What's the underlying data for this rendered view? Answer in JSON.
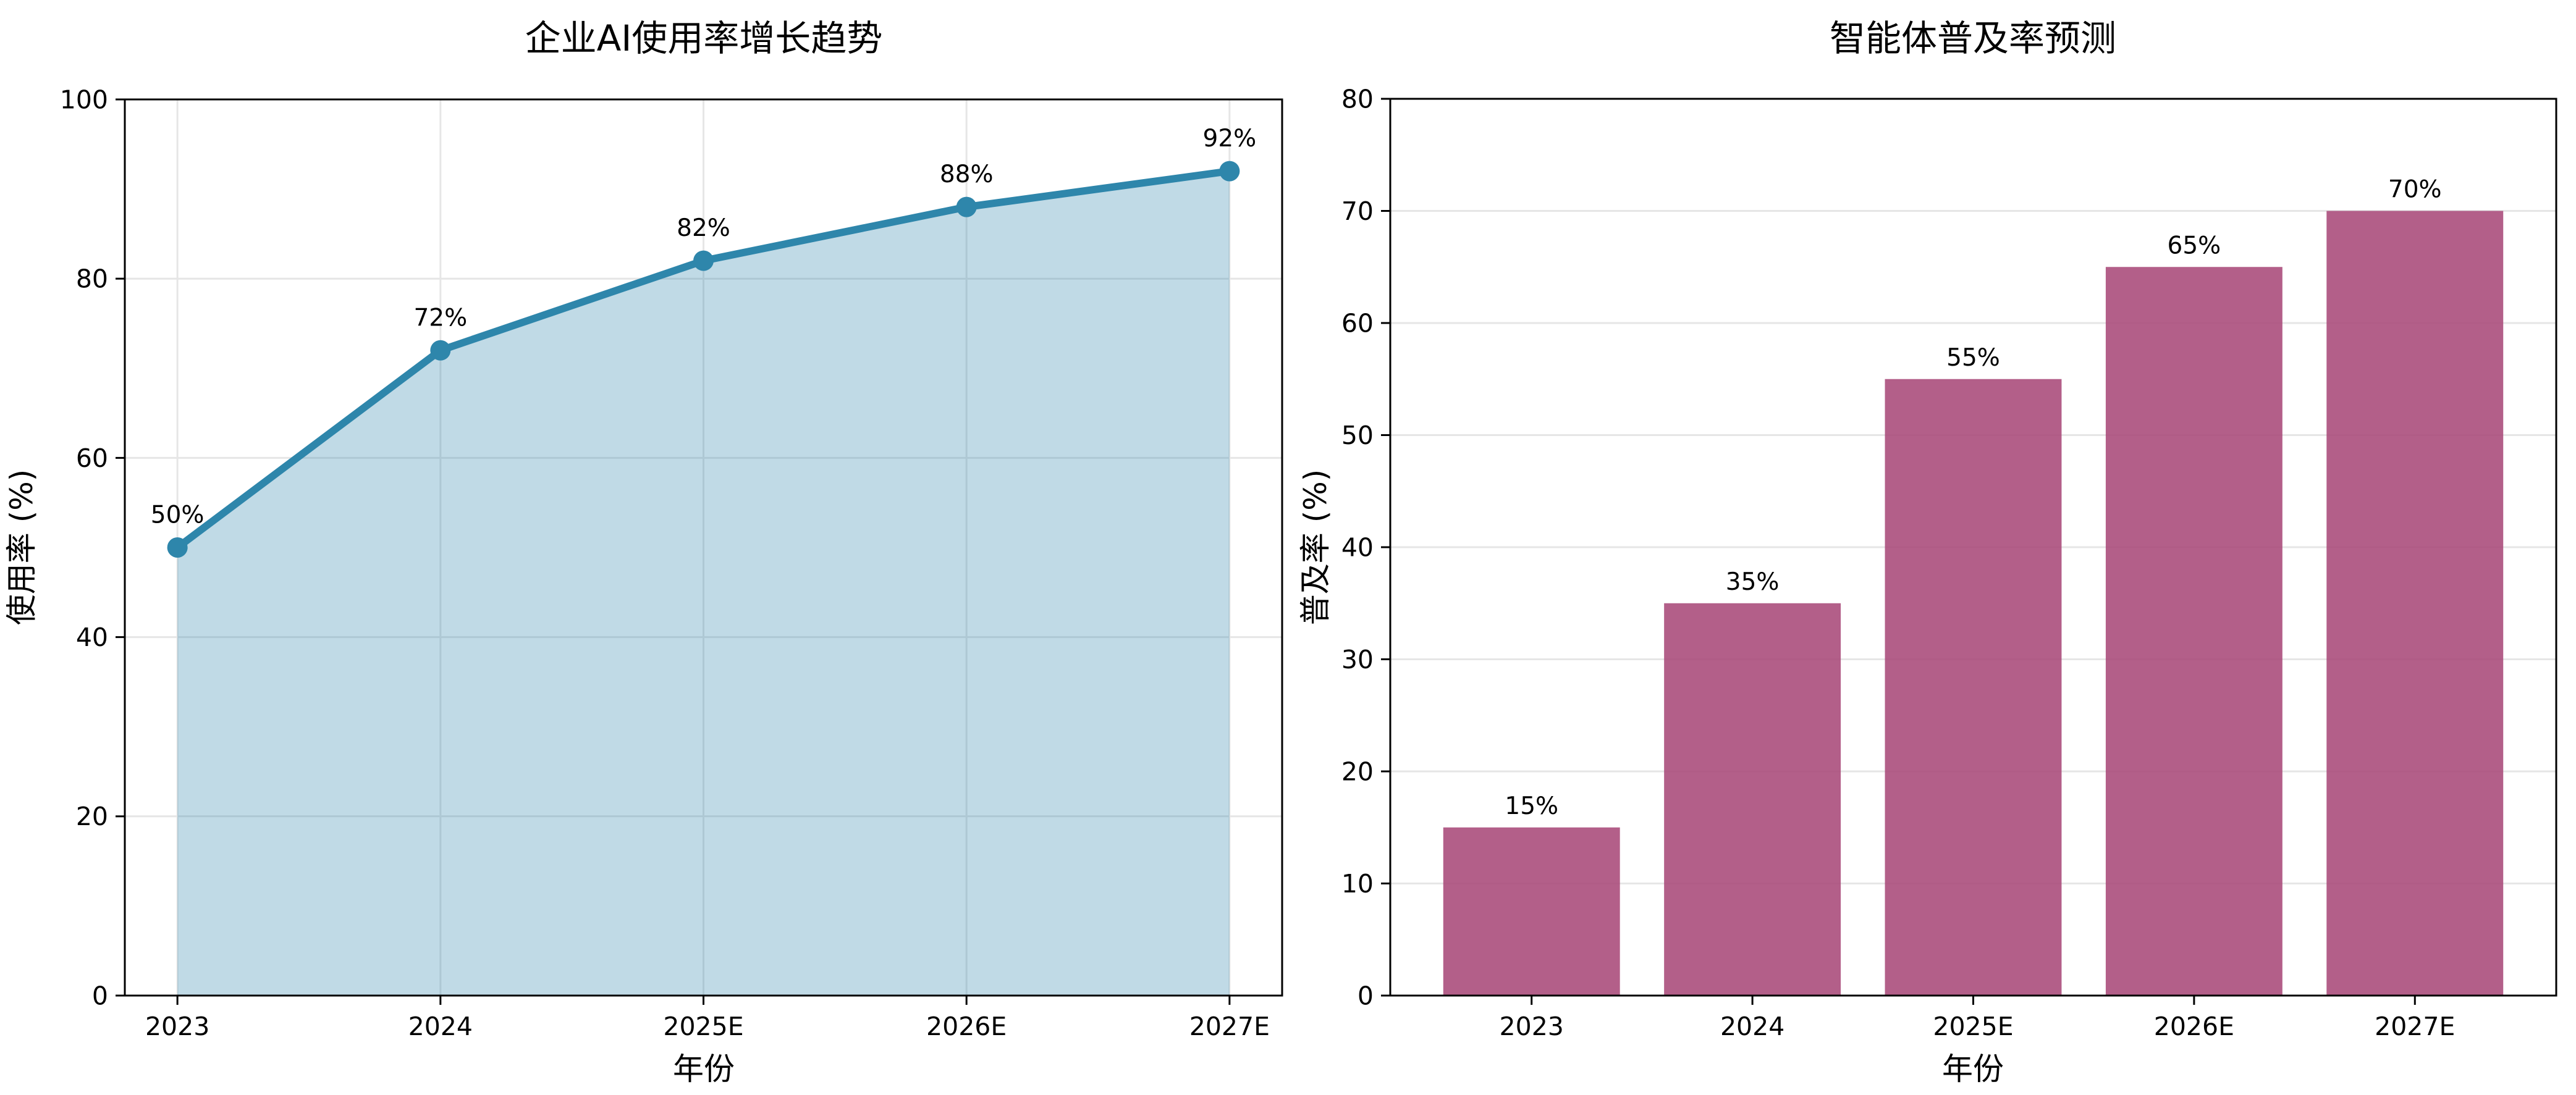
{
  "figure": {
    "background": "#ffffff",
    "text_color": "#000000",
    "grid_color": "#e6e6e6",
    "spine_color": "#000000"
  },
  "chart_data": [
    {
      "type": "area",
      "title": "企业AI使用率增长趋势",
      "xlabel": "年份",
      "ylabel": "使用率 (%)",
      "categories": [
        "2023",
        "2024",
        "2025E",
        "2026E",
        "2027E"
      ],
      "values": [
        50,
        72,
        82,
        88,
        92
      ],
      "point_labels": [
        "50%",
        "72%",
        "82%",
        "88%",
        "92%"
      ],
      "ylim": [
        0,
        100
      ],
      "yticks": [
        0,
        20,
        40,
        60,
        80,
        100
      ],
      "grid": "both",
      "legend": "none",
      "line_color": "#2E86AB",
      "marker_color": "#2E86AB",
      "fill_color": "#2E86AB",
      "fill_opacity": 0.3
    },
    {
      "type": "bar",
      "title": "智能体普及率预测",
      "xlabel": "年份",
      "ylabel": "普及率 (%)",
      "categories": [
        "2023",
        "2024",
        "2025E",
        "2026E",
        "2027E"
      ],
      "values": [
        15,
        35,
        55,
        65,
        70
      ],
      "bar_labels": [
        "15%",
        "35%",
        "55%",
        "65%",
        "70%"
      ],
      "ylim": [
        0,
        80
      ],
      "yticks": [
        0,
        10,
        20,
        30,
        40,
        50,
        60,
        70,
        80
      ],
      "grid": "y",
      "legend": "none",
      "bar_color": "#A84778",
      "bar_opacity": 0.87
    }
  ]
}
